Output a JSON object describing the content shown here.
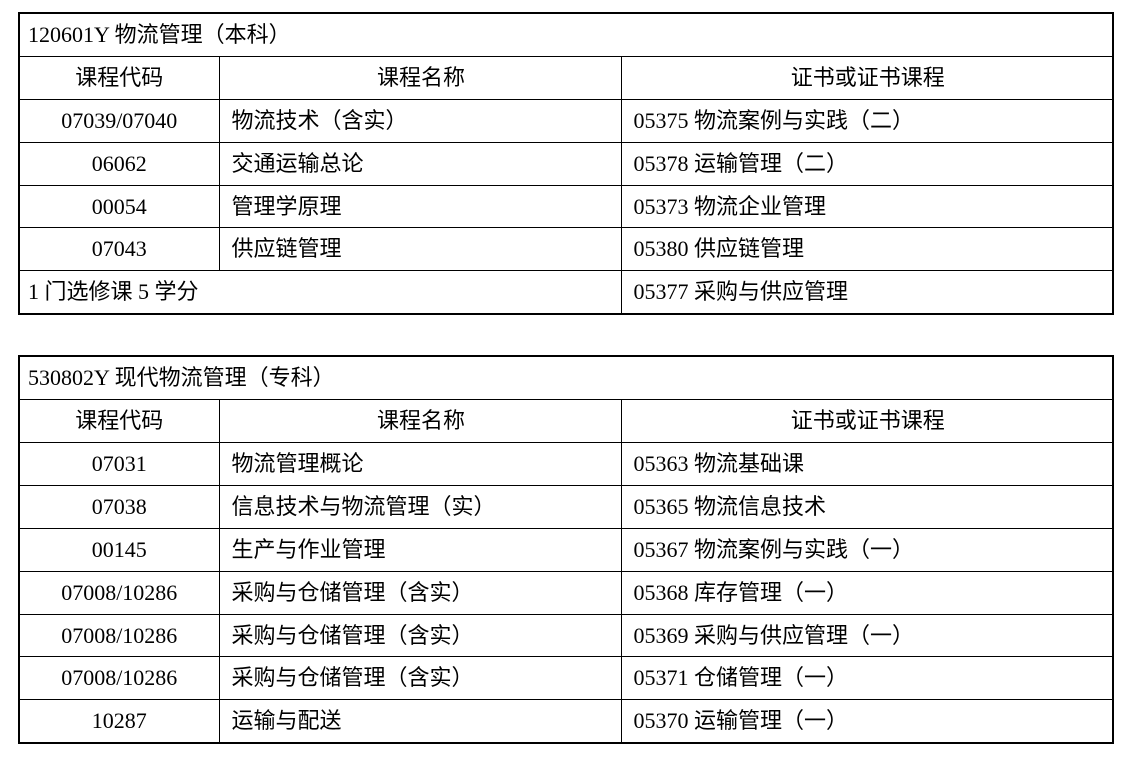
{
  "table1": {
    "title": "120601Y 物流管理（本科）",
    "headers": {
      "code": "课程代码",
      "name": "课程名称",
      "cert": "证书或证书课程"
    },
    "rows": [
      {
        "code": "07039/07040",
        "name": "物流技术（含实）",
        "cert": "05375 物流案例与实践（二）"
      },
      {
        "code": "06062",
        "name": "交通运输总论",
        "cert": "05378 运输管理（二）"
      },
      {
        "code": "00054",
        "name": "管理学原理",
        "cert": "05373  物流企业管理"
      },
      {
        "code": "07043",
        "name": "供应链管理",
        "cert": "05380 供应链管理"
      }
    ],
    "footer": {
      "left": "1 门选修课 5 学分",
      "right": "05377 采购与供应管理"
    }
  },
  "table2": {
    "title": "530802Y 现代物流管理（专科）",
    "headers": {
      "code": "课程代码",
      "name": "课程名称",
      "cert": "证书或证书课程"
    },
    "rows": [
      {
        "code": "07031",
        "name": "物流管理概论",
        "cert": "05363 物流基础课"
      },
      {
        "code": "07038",
        "name": "信息技术与物流管理（实）",
        "cert": "05365 物流信息技术"
      },
      {
        "code": "00145",
        "name": "生产与作业管理",
        "cert": "05367 物流案例与实践（一）"
      },
      {
        "code": "07008/10286",
        "name": "采购与仓储管理（含实）",
        "cert": "05368 库存管理（一）"
      },
      {
        "code": "07008/10286",
        "name": "采购与仓储管理（含实）",
        "cert": "05369 采购与供应管理（一）"
      },
      {
        "code": "07008/10286",
        "name": "采购与仓储管理（含实）",
        "cert": "05371 仓储管理（一）"
      },
      {
        "code": "10287",
        "name": "运输与配送",
        "cert": "05370 运输管理（一）"
      }
    ]
  }
}
